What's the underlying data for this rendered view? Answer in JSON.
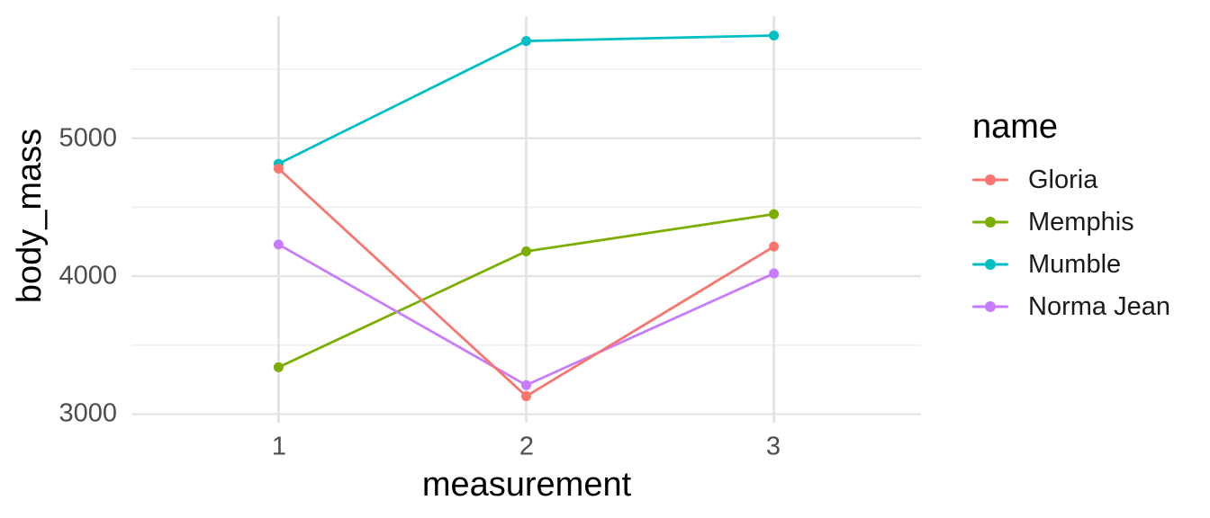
{
  "chart_data": {
    "type": "line",
    "title": "",
    "xlabel": "measurement",
    "ylabel": "body_mass",
    "x": [
      1,
      2,
      3
    ],
    "x_tick_labels": [
      "1",
      "2",
      "3"
    ],
    "y_tick_labels": [
      "3000",
      "4000",
      "5000"
    ],
    "y_tick_values": [
      3000,
      4000,
      5000
    ],
    "y_minor_gridlines": [
      3500,
      4500,
      5500
    ],
    "x_gridlines": [
      1,
      2,
      3
    ],
    "xlim": [
      0.406,
      3.594
    ],
    "ylim": [
      2938,
      5885
    ],
    "grid": true,
    "legend_position": "right",
    "legend_title": "name",
    "series": [
      {
        "name": "Gloria",
        "color": "#F8766D",
        "values": [
          4780,
          3130,
          4215
        ]
      },
      {
        "name": "Memphis",
        "color": "#7CAE00",
        "values": [
          3340,
          4180,
          4450
        ]
      },
      {
        "name": "Mumble",
        "color": "#00BFC4",
        "values": [
          4815,
          5705,
          5745
        ]
      },
      {
        "name": "Norma Jean",
        "color": "#C77CFF",
        "values": [
          4230,
          3210,
          4020
        ]
      }
    ],
    "draw_order": [
      "Mumble",
      "Memphis",
      "Norma Jean",
      "Gloria"
    ],
    "theme": {
      "grid_major_color": "#E3E3E3",
      "grid_minor_color": "#EFEFEF",
      "tick_label_color": "#4D4D4D",
      "title_color": "#000000",
      "background": "#FFFFFF"
    }
  }
}
